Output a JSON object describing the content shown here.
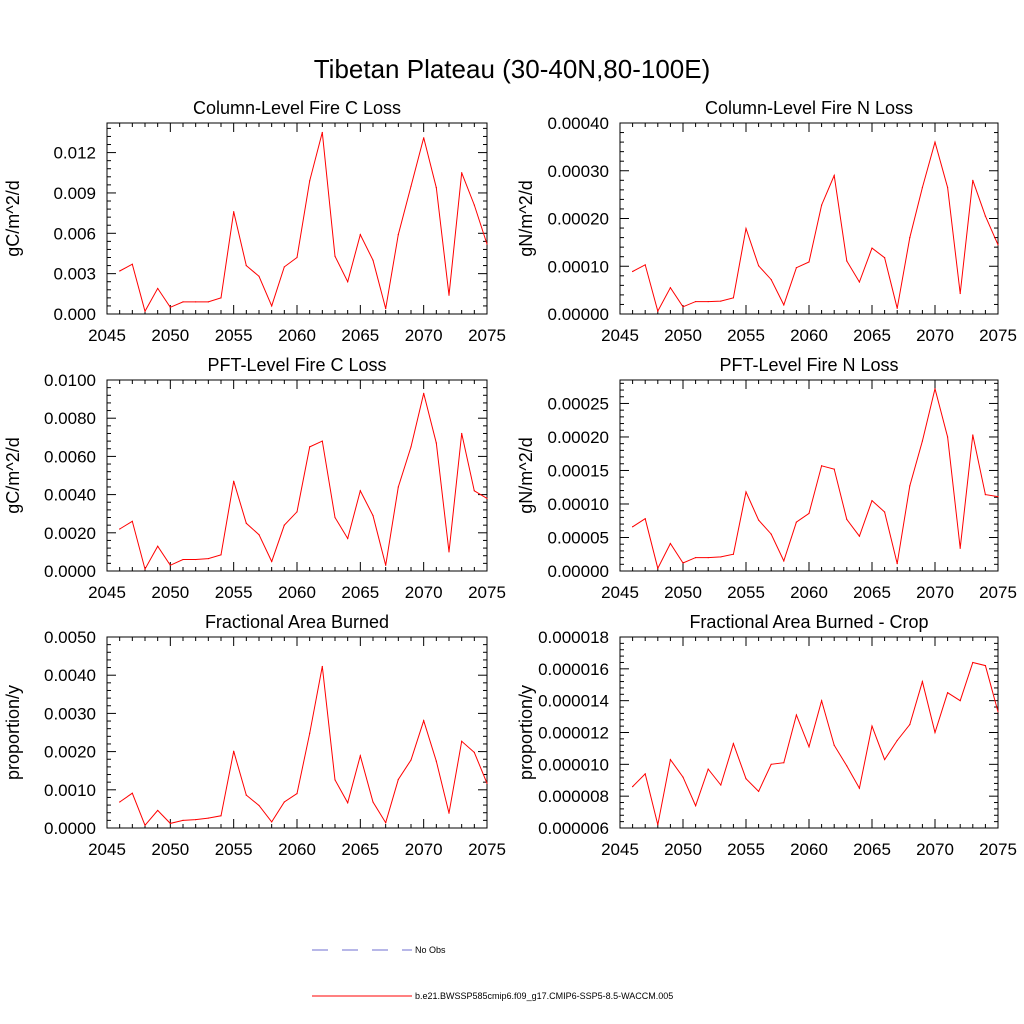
{
  "figure": {
    "title": "Tibetan Plateau (30-40N,80-100E)"
  },
  "legend": {
    "entries": [
      {
        "label": "No Obs",
        "color": "#6f6fd0",
        "style": "dashed"
      },
      {
        "label": "b.e21.BWSSP585cmip6.f09_g17.CMIP6-SSP5-8.5-WACCM.005",
        "color": "#ff0000",
        "style": "solid"
      }
    ]
  },
  "chart_data": [
    {
      "type": "line",
      "title": "Column-Level Fire C Loss",
      "ylabel": "gC/m^2/d",
      "xlim": [
        2045,
        2075
      ],
      "ylim": [
        0,
        0.0142
      ],
      "xticks": [
        2045,
        2050,
        2055,
        2060,
        2065,
        2070,
        2075
      ],
      "xtick_labels": [
        "2045",
        "2050",
        "2055",
        "2060",
        "2065",
        "2070",
        "2075"
      ],
      "yticks": [
        0,
        0.003,
        0.006,
        0.009,
        0.012
      ],
      "ytick_labels": [
        "0.000",
        "0.003",
        "0.006",
        "0.009",
        "0.012"
      ],
      "series": [
        {
          "name": "b.e21.BWSSP585cmip6.f09_g17.CMIP6-SSP5-8.5-WACCM.005",
          "color": "#ff0000",
          "x": [
            2046,
            2047,
            2048,
            2049,
            2050,
            2051,
            2052,
            2053,
            2054,
            2055,
            2056,
            2057,
            2058,
            2059,
            2060,
            2061,
            2062,
            2063,
            2064,
            2065,
            2066,
            2067,
            2068,
            2069,
            2070,
            2071,
            2072,
            2073,
            2074,
            2075
          ],
          "values": [
            0.0032,
            0.0037,
            0.0002,
            0.0019,
            0.0005,
            0.0009,
            0.0009,
            0.0009,
            0.0012,
            0.0076,
            0.0036,
            0.0028,
            0.0006,
            0.0035,
            0.0042,
            0.0099,
            0.0135,
            0.0043,
            0.0024,
            0.0059,
            0.004,
            0.0004,
            0.0059,
            0.0095,
            0.0131,
            0.0094,
            0.0014,
            0.0105,
            0.0081,
            0.0052
          ]
        }
      ]
    },
    {
      "type": "line",
      "title": "Column-Level Fire N Loss",
      "ylabel": "gN/m^2/d",
      "xlim": [
        2045,
        2075
      ],
      "ylim": [
        0,
        0.0004
      ],
      "xticks": [
        2045,
        2050,
        2055,
        2060,
        2065,
        2070,
        2075
      ],
      "xtick_labels": [
        "2045",
        "2050",
        "2055",
        "2060",
        "2065",
        "2070",
        "2075"
      ],
      "yticks": [
        0,
        0.0001,
        0.0002,
        0.0003,
        0.0004
      ],
      "ytick_labels": [
        "0.00000",
        "0.00010",
        "0.00020",
        "0.00030",
        "0.00040"
      ],
      "series": [
        {
          "name": "b.e21.BWSSP585cmip6.f09_g17.CMIP6-SSP5-8.5-WACCM.005",
          "color": "#ff0000",
          "x": [
            2046,
            2047,
            2048,
            2049,
            2050,
            2051,
            2052,
            2053,
            2054,
            2055,
            2056,
            2057,
            2058,
            2059,
            2060,
            2061,
            2062,
            2063,
            2064,
            2065,
            2066,
            2067,
            2068,
            2069,
            2070,
            2071,
            2072,
            2073,
            2074,
            2075
          ],
          "values": [
            8.9e-05,
            0.000103,
            6e-06,
            5.5e-05,
            1.5e-05,
            2.6e-05,
            2.6e-05,
            2.7e-05,
            3.4e-05,
            0.000179,
            0.000101,
            7.2e-05,
            1.9e-05,
            9.7e-05,
            0.000109,
            0.000228,
            0.00029,
            0.000111,
            6.7e-05,
            0.000138,
            0.000118,
            1.2e-05,
            0.00016,
            0.000265,
            0.00036,
            0.000265,
            4.3e-05,
            0.00028,
            0.000205,
            0.000145
          ]
        }
      ]
    },
    {
      "type": "line",
      "title": "PFT-Level Fire C Loss",
      "ylabel": "gC/m^2/d",
      "xlim": [
        2045,
        2075
      ],
      "ylim": [
        0,
        0.01
      ],
      "xticks": [
        2045,
        2050,
        2055,
        2060,
        2065,
        2070,
        2075
      ],
      "xtick_labels": [
        "2045",
        "2050",
        "2055",
        "2060",
        "2065",
        "2070",
        "2075"
      ],
      "yticks": [
        0,
        0.002,
        0.004,
        0.006,
        0.008,
        0.01
      ],
      "ytick_labels": [
        "0.0000",
        "0.0020",
        "0.0040",
        "0.0060",
        "0.0080",
        "0.0100"
      ],
      "series": [
        {
          "name": "b.e21.BWSSP585cmip6.f09_g17.CMIP6-SSP5-8.5-WACCM.005",
          "color": "#ff0000",
          "x": [
            2046,
            2047,
            2048,
            2049,
            2050,
            2051,
            2052,
            2053,
            2054,
            2055,
            2056,
            2057,
            2058,
            2059,
            2060,
            2061,
            2062,
            2063,
            2064,
            2065,
            2066,
            2067,
            2068,
            2069,
            2070,
            2071,
            2072,
            2073,
            2074,
            2075
          ],
          "values": [
            0.0022,
            0.0026,
            0.0001,
            0.0013,
            0.0003,
            0.0006,
            0.0006,
            0.00065,
            0.00085,
            0.0047,
            0.0025,
            0.0019,
            0.0005,
            0.0024,
            0.0031,
            0.0065,
            0.0068,
            0.0028,
            0.0017,
            0.0042,
            0.0029,
            0.0003,
            0.0044,
            0.0065,
            0.0093,
            0.0067,
            0.001,
            0.0072,
            0.0042,
            0.0038
          ]
        }
      ]
    },
    {
      "type": "line",
      "title": "PFT-Level Fire N Loss",
      "ylabel": "gN/m^2/d",
      "xlim": [
        2045,
        2075
      ],
      "ylim": [
        0,
        0.000285
      ],
      "xticks": [
        2045,
        2050,
        2055,
        2060,
        2065,
        2070,
        2075
      ],
      "xtick_labels": [
        "2045",
        "2050",
        "2055",
        "2060",
        "2065",
        "2070",
        "2075"
      ],
      "yticks": [
        0,
        5e-05,
        0.0001,
        0.00015,
        0.0002,
        0.00025
      ],
      "ytick_labels": [
        "0.00000",
        "0.00005",
        "0.00010",
        "0.00015",
        "0.00020",
        "0.00025"
      ],
      "series": [
        {
          "name": "b.e21.BWSSP585cmip6.f09_g17.CMIP6-SSP5-8.5-WACCM.005",
          "color": "#ff0000",
          "x": [
            2046,
            2047,
            2048,
            2049,
            2050,
            2051,
            2052,
            2053,
            2054,
            2055,
            2056,
            2057,
            2058,
            2059,
            2060,
            2061,
            2062,
            2063,
            2064,
            2065,
            2066,
            2067,
            2068,
            2069,
            2070,
            2071,
            2072,
            2073,
            2074,
            2075
          ],
          "values": [
            6.6e-05,
            7.8e-05,
            4e-06,
            4.1e-05,
            1.2e-05,
            2e-05,
            2e-05,
            2.1e-05,
            2.5e-05,
            0.000118,
            7.6e-05,
            5.5e-05,
            1.5e-05,
            7.3e-05,
            8.6e-05,
            0.000157,
            0.000152,
            7.7e-05,
            5.2e-05,
            0.000105,
            8.8e-05,
            1.1e-05,
            0.000127,
            0.000194,
            0.000272,
            0.0002,
            3.4e-05,
            0.000203,
            0.000114,
            0.000111
          ]
        }
      ]
    },
    {
      "type": "line",
      "title": "Fractional Area Burned",
      "ylabel": "proportion/y",
      "xlim": [
        2045,
        2075
      ],
      "ylim": [
        0,
        0.005
      ],
      "xticks": [
        2045,
        2050,
        2055,
        2060,
        2065,
        2070,
        2075
      ],
      "xtick_labels": [
        "2045",
        "2050",
        "2055",
        "2060",
        "2065",
        "2070",
        "2075"
      ],
      "yticks": [
        0,
        0.001,
        0.002,
        0.003,
        0.004,
        0.005
      ],
      "ytick_labels": [
        "0.0000",
        "0.0010",
        "0.0020",
        "0.0030",
        "0.0040",
        "0.0050"
      ],
      "series": [
        {
          "name": "b.e21.BWSSP585cmip6.f09_g17.CMIP6-SSP5-8.5-WACCM.005",
          "color": "#ff0000",
          "x": [
            2046,
            2047,
            2048,
            2049,
            2050,
            2051,
            2052,
            2053,
            2054,
            2055,
            2056,
            2057,
            2058,
            2059,
            2060,
            2061,
            2062,
            2063,
            2064,
            2065,
            2066,
            2067,
            2068,
            2069,
            2070,
            2071,
            2072,
            2073,
            2074,
            2075
          ],
          "values": [
            0.00068,
            0.00091,
            7e-05,
            0.00046,
            0.00012,
            0.0002,
            0.00022,
            0.00026,
            0.00032,
            0.00201,
            0.00086,
            0.00059,
            0.00016,
            0.00068,
            0.0009,
            0.00248,
            0.00423,
            0.00126,
            0.00066,
            0.00189,
            0.00068,
            0.00014,
            0.00127,
            0.00178,
            0.00281,
            0.00175,
            0.00039,
            0.00227,
            0.00198,
            0.00117
          ]
        }
      ]
    },
    {
      "type": "line",
      "title": "Fractional Area Burned - Crop",
      "ylabel": "proportion/y",
      "xlim": [
        2045,
        2075
      ],
      "ylim": [
        6e-06,
        1.8e-05
      ],
      "xticks": [
        2045,
        2050,
        2055,
        2060,
        2065,
        2070,
        2075
      ],
      "xtick_labels": [
        "2045",
        "2050",
        "2055",
        "2060",
        "2065",
        "2070",
        "2075"
      ],
      "yticks": [
        6e-06,
        8e-06,
        1e-05,
        1.2e-05,
        1.4e-05,
        1.6e-05,
        1.8e-05
      ],
      "ytick_labels": [
        "0.000006",
        "0.000008",
        "0.000010",
        "0.000012",
        "0.000014",
        "0.000016",
        "0.000018"
      ],
      "series": [
        {
          "name": "b.e21.BWSSP585cmip6.f09_g17.CMIP6-SSP5-8.5-WACCM.005",
          "color": "#ff0000",
          "x": [
            2046,
            2047,
            2048,
            2049,
            2050,
            2051,
            2052,
            2053,
            2054,
            2055,
            2056,
            2057,
            2058,
            2059,
            2060,
            2061,
            2062,
            2063,
            2064,
            2065,
            2066,
            2067,
            2068,
            2069,
            2070,
            2071,
            2072,
            2073,
            2074,
            2075
          ],
          "values": [
            8.6e-06,
            9.4e-06,
            6.2e-06,
            1.03e-05,
            9.2e-06,
            7.4e-06,
            9.7e-06,
            8.7e-06,
            1.13e-05,
            9.1e-06,
            8.3e-06,
            1e-05,
            1.01e-05,
            1.31e-05,
            1.11e-05,
            1.4e-05,
            1.12e-05,
            9.9e-06,
            8.5e-06,
            1.24e-05,
            1.03e-05,
            1.15e-05,
            1.25e-05,
            1.52e-05,
            1.2e-05,
            1.45e-05,
            1.4e-05,
            1.64e-05,
            1.62e-05,
            1.33e-05
          ]
        }
      ]
    }
  ]
}
